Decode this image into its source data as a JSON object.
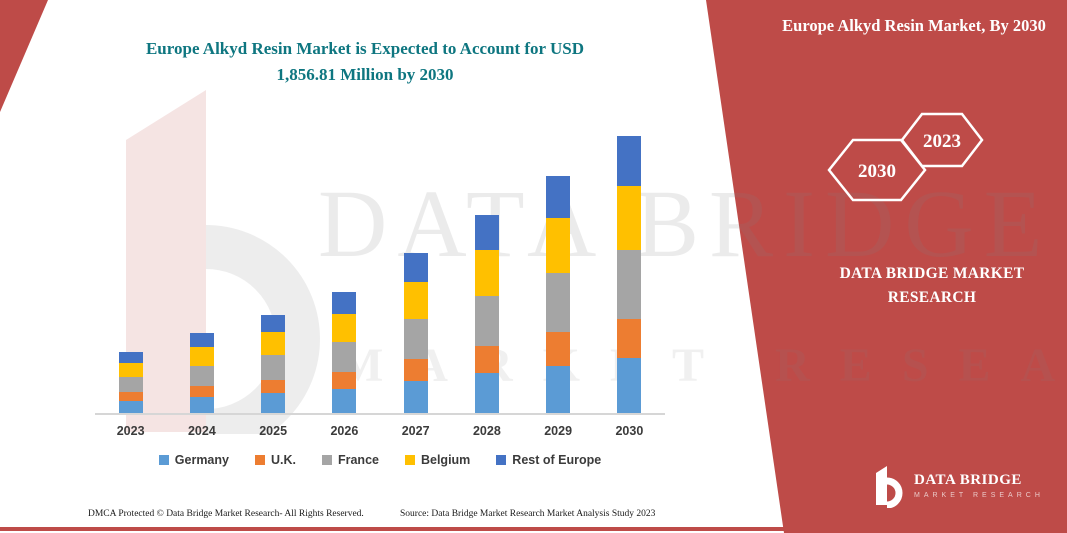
{
  "colors": {
    "panel_red": "#BE4B48",
    "title_teal": "#0E7680",
    "label_dark": "#3B3B3B",
    "axis_gray": "#D6D6D6"
  },
  "header": {
    "title": "Europe Alkyd Resin Market is Expected to Account for USD 1,856.81 Million by 2030"
  },
  "side_panel": {
    "title": "Europe Alkyd Resin Market, By 2030",
    "badge_2030": "2030",
    "badge_2023": "2023",
    "brand": "DATA BRIDGE MARKET RESEARCH"
  },
  "logo": {
    "name": "DATA BRIDGE",
    "tagline": "MARKET RESEARCH"
  },
  "watermark": {
    "line1": "DATA BRIDGE",
    "line2": "MARKET RESEARCH"
  },
  "footer": {
    "dmca": "DMCA Protected © Data Bridge Market Research-  All Rights Reserved.",
    "source": "Source: Data Bridge Market Research  Market Analysis Study 2023"
  },
  "chart_data": {
    "type": "bar",
    "stacked": true,
    "title": "Europe Alkyd Resin Market is Expected to Account for USD 1,856.81 Million by 2030",
    "unit": "USD Million",
    "categories": [
      "2023",
      "2024",
      "2025",
      "2026",
      "2027",
      "2028",
      "2029",
      "2030"
    ],
    "series": [
      {
        "name": "Germany",
        "color": "#5B9BD5",
        "values": [
          82,
          108,
          132,
          162,
          214,
          266,
          318,
          371
        ]
      },
      {
        "name": "U.K.",
        "color": "#ED7D31",
        "values": [
          57,
          76,
          92,
          113,
          150,
          186,
          223,
          260
        ]
      },
      {
        "name": "France",
        "color": "#A5A5A5",
        "values": [
          102,
          135,
          165,
          203,
          268,
          333,
          398,
          464
        ]
      },
      {
        "name": "Belgium",
        "color": "#FFC000",
        "values": [
          94,
          124,
          152,
          186,
          246,
          306,
          366,
          427
        ]
      },
      {
        "name": "Rest of Europe",
        "color": "#4472C4",
        "values": [
          74,
          97,
          119,
          146,
          193,
          239,
          286,
          334.81
        ]
      }
    ],
    "ylim": [
      0,
      1900
    ],
    "grid": false,
    "legend_position": "bottom"
  }
}
